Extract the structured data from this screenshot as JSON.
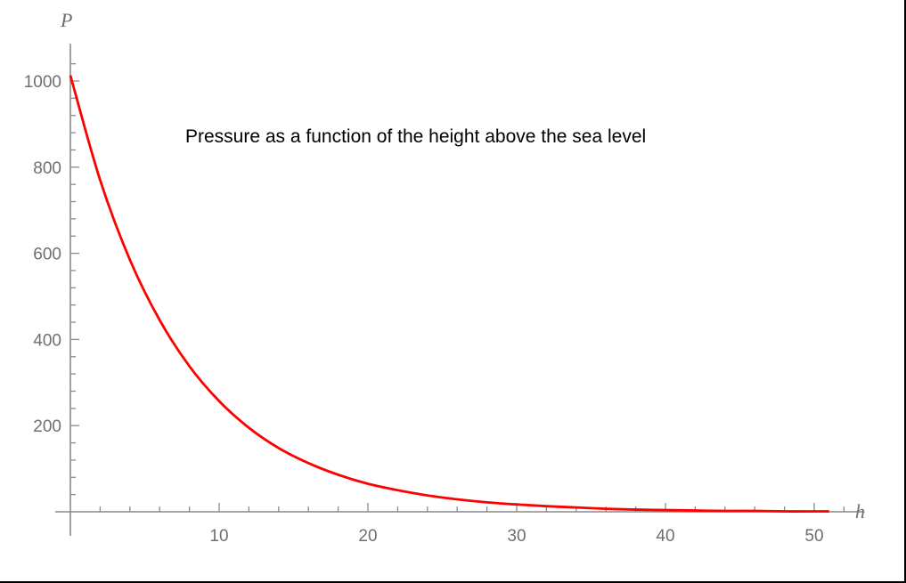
{
  "chart_data": {
    "type": "line",
    "title": "",
    "annotation": "Pressure as a function of the height above the sea level",
    "xlabel": "h",
    "ylabel": "P",
    "xlim": [
      0,
      52
    ],
    "ylim": [
      0,
      1070
    ],
    "x_ticks": [
      10,
      20,
      30,
      40,
      50
    ],
    "y_ticks": [
      200,
      400,
      600,
      800,
      1000
    ],
    "x_minor_step": 2,
    "y_minor_step": 40,
    "grid": false,
    "series": [
      {
        "color": "#ff0000",
        "x": [
          0,
          2,
          4,
          6,
          8,
          10,
          12,
          14,
          16,
          18,
          20,
          22,
          24,
          26,
          28,
          30,
          32,
          34,
          36,
          38,
          40,
          42,
          44,
          46,
          48,
          50,
          51
        ],
        "y": [
          1013,
          770,
          585,
          445,
          338,
          257,
          195,
          148,
          113,
          86,
          65,
          50,
          38,
          29,
          22,
          17,
          13,
          10,
          7,
          5,
          4,
          3,
          2,
          2,
          1,
          1,
          1
        ]
      }
    ]
  }
}
